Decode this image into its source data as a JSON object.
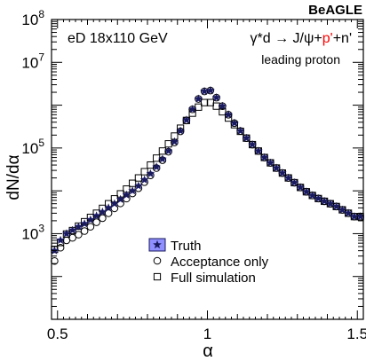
{
  "chart_data": {
    "type": "scatter",
    "experiment_label": "BeAGLE",
    "annotation_left": "eD 18x110 GeV",
    "xlabel": "α",
    "ylabel": "dN/dα",
    "xlim": [
      0.48,
      1.52
    ],
    "ylim": [
      10,
      100000000
    ],
    "yscale": "log",
    "grid": false,
    "legend_position": "bottom-center",
    "x_ticks": [
      {
        "value": 0.5,
        "label": "0.5"
      },
      {
        "value": 1.0,
        "label": "1"
      },
      {
        "value": 1.5,
        "label": "1.5"
      }
    ],
    "y_ticks": [
      {
        "value": 1000,
        "base": "10",
        "exp": "3"
      },
      {
        "value": 100000,
        "base": "10",
        "exp": "5"
      },
      {
        "value": 10000000,
        "base": "10",
        "exp": "7"
      },
      {
        "value": 100000000,
        "base": "10",
        "exp": "8"
      }
    ],
    "reaction": {
      "parts": [
        {
          "text": "γ*d → J/ψ+",
          "color": "#000000"
        },
        {
          "text": "p'",
          "color": "#ff0000"
        },
        {
          "text": "+n'",
          "color": "#000000"
        }
      ]
    },
    "reaction_sublabel": {
      "text": "leading proton",
      "color": "#ff0000"
    },
    "colors": {
      "truth_fill": "#8f8fff",
      "truth_marker": "#1a1a5e"
    },
    "series": [
      {
        "name": "Truth",
        "marker": "star",
        "x": [
          0.49,
          0.51,
          0.53,
          0.55,
          0.57,
          0.59,
          0.61,
          0.63,
          0.65,
          0.67,
          0.69,
          0.71,
          0.73,
          0.75,
          0.77,
          0.79,
          0.81,
          0.83,
          0.85,
          0.87,
          0.89,
          0.91,
          0.93,
          0.95,
          0.97,
          0.99,
          1.01,
          1.03,
          1.05,
          1.07,
          1.09,
          1.11,
          1.13,
          1.15,
          1.17,
          1.19,
          1.21,
          1.23,
          1.25,
          1.27,
          1.29,
          1.31,
          1.33,
          1.35,
          1.37,
          1.39,
          1.41,
          1.43,
          1.45,
          1.47,
          1.49,
          1.51
        ],
        "values": [
          400,
          700,
          1000,
          1200,
          1450,
          1700,
          2100,
          2600,
          3200,
          4000,
          5000,
          6300,
          8000,
          10000,
          13000,
          18000,
          25000,
          36000,
          55000,
          85000,
          140000,
          250000,
          450000,
          800000,
          1400000,
          2100000,
          2200000,
          1500000,
          950000,
          600000,
          380000,
          250000,
          170000,
          120000,
          85000,
          60000,
          45000,
          34000,
          26000,
          20000,
          15500,
          12000,
          9500,
          7800,
          6600,
          5700,
          5000,
          4300,
          3600,
          3000,
          2500,
          2500
        ]
      },
      {
        "name": "Acceptance only",
        "marker": "circle",
        "x": [
          0.49,
          0.51,
          0.53,
          0.55,
          0.57,
          0.59,
          0.61,
          0.63,
          0.65,
          0.67,
          0.69,
          0.71,
          0.73,
          0.75,
          0.77,
          0.79,
          0.81,
          0.83,
          0.85,
          0.87,
          0.89,
          0.91,
          0.93,
          0.95,
          0.97,
          0.99,
          1.01,
          1.03,
          1.05,
          1.07,
          1.09,
          1.11,
          1.13,
          1.15,
          1.17,
          1.19,
          1.21,
          1.23,
          1.25,
          1.27,
          1.29,
          1.31,
          1.33,
          1.35,
          1.37,
          1.39,
          1.41,
          1.43,
          1.45,
          1.47,
          1.49,
          1.51
        ],
        "values": [
          230,
          470,
          700,
          800,
          950,
          1150,
          1450,
          1850,
          2300,
          3000,
          3900,
          5100,
          6600,
          8700,
          11500,
          16000,
          23000,
          34000,
          52000,
          82000,
          135000,
          245000,
          440000,
          800000,
          1400000,
          2100000,
          2200000,
          1500000,
          950000,
          600000,
          380000,
          250000,
          170000,
          120000,
          85000,
          60000,
          45000,
          34000,
          26000,
          20000,
          15500,
          12000,
          9500,
          7800,
          6600,
          5700,
          5000,
          4300,
          3600,
          3000,
          2500,
          2400
        ]
      },
      {
        "name": "Full simulation",
        "marker": "square",
        "x": [
          0.49,
          0.51,
          0.53,
          0.55,
          0.57,
          0.59,
          0.61,
          0.63,
          0.65,
          0.67,
          0.69,
          0.71,
          0.73,
          0.75,
          0.77,
          0.79,
          0.81,
          0.83,
          0.85,
          0.87,
          0.89,
          0.91,
          0.93,
          0.95,
          0.97,
          0.99,
          1.01,
          1.03,
          1.05,
          1.07,
          1.09,
          1.11,
          1.13,
          1.15,
          1.17,
          1.19,
          1.21,
          1.23,
          1.25,
          1.27,
          1.29,
          1.31,
          1.33,
          1.35,
          1.37,
          1.39,
          1.41,
          1.43,
          1.45,
          1.47,
          1.49,
          1.51
        ],
        "values": [
          430,
          620,
          980,
          1180,
          1500,
          1900,
          2400,
          3000,
          3900,
          5000,
          6500,
          8500,
          11000,
          15000,
          20000,
          28000,
          40000,
          58000,
          85000,
          125000,
          190000,
          290000,
          440000,
          650000,
          900000,
          1150000,
          1150000,
          950000,
          700000,
          500000,
          350000,
          245000,
          170000,
          120000,
          85000,
          60000,
          45000,
          34000,
          26000,
          20000,
          15500,
          12000,
          9500,
          7800,
          6600,
          5700,
          5000,
          4300,
          3600,
          3000,
          2500,
          2500
        ]
      }
    ]
  }
}
